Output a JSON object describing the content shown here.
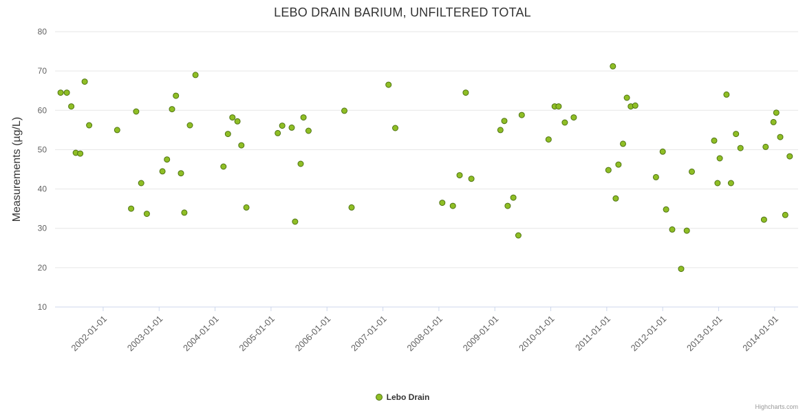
{
  "title": "LEBO DRAIN BARIUM, UNFILTERED TOTAL",
  "y_axis_title": "Measurements (µg/L)",
  "legend": {
    "label": "Lebo Drain"
  },
  "credit": "Highcharts.com",
  "colors": {
    "point_fill": "#8fbe25",
    "point_stroke": "#4e7312",
    "grid": "#e6e6e6",
    "axis_line": "#ccd6eb",
    "axis_text": "#606060",
    "title_text": "#333333"
  },
  "chart_data": {
    "type": "scatter",
    "title": "LEBO DRAIN BARIUM, UNFILTERED TOTAL",
    "xlabel": "",
    "ylabel": "Measurements (µg/L)",
    "ylim": [
      10,
      80
    ],
    "y_ticks": [
      10,
      20,
      30,
      40,
      50,
      60,
      70,
      80
    ],
    "xlim": [
      2001.14,
      2014.42
    ],
    "x_ticks": [
      "2002-01-01",
      "2003-01-01",
      "2004-01-01",
      "2005-01-01",
      "2006-01-01",
      "2007-01-01",
      "2008-01-01",
      "2009-01-01",
      "2010-01-01",
      "2011-01-01",
      "2012-01-01",
      "2013-01-01",
      "2014-01-01"
    ],
    "x_tick_years": [
      2002,
      2003,
      2004,
      2005,
      2006,
      2007,
      2008,
      2009,
      2010,
      2011,
      2012,
      2013,
      2014
    ],
    "grid": "horizontal-only",
    "legend_position": "bottom-center",
    "series": [
      {
        "name": "Lebo Drain",
        "points": [
          [
            2001.24,
            64.5
          ],
          [
            2001.35,
            64.5
          ],
          [
            2001.43,
            61.0
          ],
          [
            2001.51,
            49.2
          ],
          [
            2001.59,
            49.0
          ],
          [
            2001.67,
            67.3
          ],
          [
            2001.75,
            56.2
          ],
          [
            2002.25,
            55.0
          ],
          [
            2002.5,
            35.0
          ],
          [
            2002.59,
            59.7
          ],
          [
            2002.68,
            41.5
          ],
          [
            2002.78,
            33.7
          ],
          [
            2003.06,
            44.5
          ],
          [
            2003.14,
            47.5
          ],
          [
            2003.23,
            60.3
          ],
          [
            2003.3,
            63.7
          ],
          [
            2003.39,
            44.0
          ],
          [
            2003.45,
            34.0
          ],
          [
            2003.55,
            56.2
          ],
          [
            2003.65,
            69.0
          ],
          [
            2004.15,
            45.7
          ],
          [
            2004.23,
            54.0
          ],
          [
            2004.31,
            58.2
          ],
          [
            2004.4,
            57.2
          ],
          [
            2004.47,
            51.1
          ],
          [
            2004.56,
            35.3
          ],
          [
            2005.12,
            54.2
          ],
          [
            2005.2,
            56.1
          ],
          [
            2005.37,
            55.6
          ],
          [
            2005.43,
            31.7
          ],
          [
            2005.53,
            46.4
          ],
          [
            2005.58,
            58.2
          ],
          [
            2005.67,
            54.8
          ],
          [
            2006.31,
            59.9
          ],
          [
            2006.44,
            35.3
          ],
          [
            2007.1,
            66.5
          ],
          [
            2007.22,
            55.5
          ],
          [
            2008.06,
            36.5
          ],
          [
            2008.25,
            35.7
          ],
          [
            2008.37,
            43.5
          ],
          [
            2008.48,
            64.5
          ],
          [
            2008.58,
            42.6
          ],
          [
            2009.1,
            55.0
          ],
          [
            2009.17,
            57.3
          ],
          [
            2009.23,
            35.7
          ],
          [
            2009.33,
            37.8
          ],
          [
            2009.42,
            28.2
          ],
          [
            2009.48,
            58.8
          ],
          [
            2009.96,
            52.6
          ],
          [
            2010.07,
            61.0
          ],
          [
            2010.14,
            61.0
          ],
          [
            2010.25,
            56.9
          ],
          [
            2010.41,
            58.2
          ],
          [
            2011.03,
            44.8
          ],
          [
            2011.11,
            71.2
          ],
          [
            2011.16,
            37.6
          ],
          [
            2011.21,
            46.2
          ],
          [
            2011.29,
            51.5
          ],
          [
            2011.36,
            63.2
          ],
          [
            2011.43,
            61.0
          ],
          [
            2011.51,
            61.2
          ],
          [
            2011.88,
            43.0
          ],
          [
            2012.0,
            49.5
          ],
          [
            2012.06,
            34.8
          ],
          [
            2012.17,
            29.7
          ],
          [
            2012.33,
            19.7
          ],
          [
            2012.43,
            29.4
          ],
          [
            2012.52,
            44.4
          ],
          [
            2012.92,
            52.3
          ],
          [
            2012.98,
            41.5
          ],
          [
            2013.02,
            47.8
          ],
          [
            2013.14,
            64.0
          ],
          [
            2013.22,
            41.5
          ],
          [
            2013.31,
            54.0
          ],
          [
            2013.39,
            50.4
          ],
          [
            2013.81,
            32.2
          ],
          [
            2013.84,
            50.7
          ],
          [
            2013.98,
            57.0
          ],
          [
            2014.03,
            59.4
          ],
          [
            2014.1,
            53.2
          ],
          [
            2014.19,
            33.4
          ],
          [
            2014.27,
            48.3
          ]
        ]
      }
    ]
  }
}
